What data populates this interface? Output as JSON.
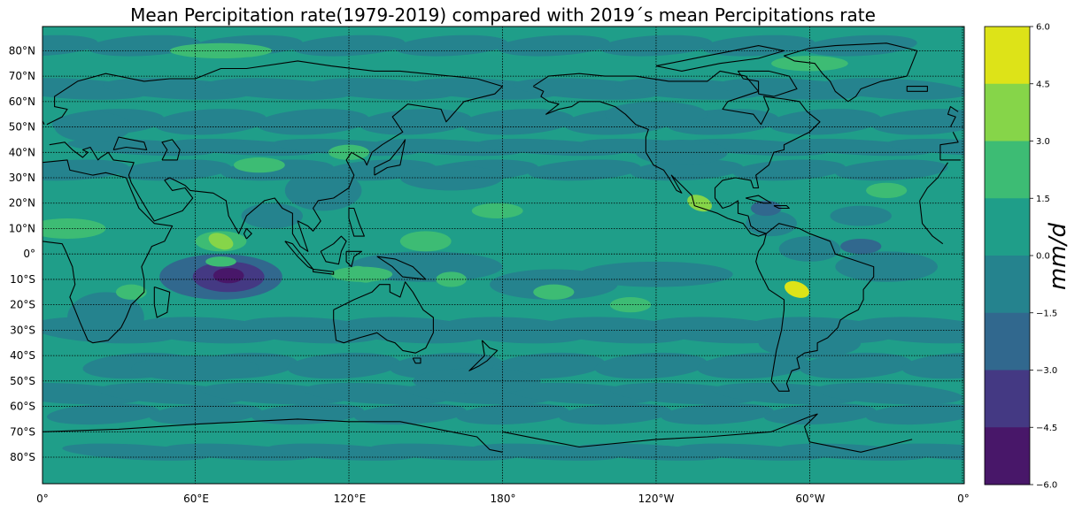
{
  "title": "Mean Percipitation rate(1979-2019) compared with 2019´s mean Percipitations rate",
  "map": {
    "projection": "PlateCarree",
    "central_longitude": 180,
    "lat_ticks": [
      "80°N",
      "70°N",
      "60°N",
      "50°N",
      "40°N",
      "30°N",
      "20°N",
      "10°N",
      "0°",
      "10°S",
      "20°S",
      "30°S",
      "40°S",
      "50°S",
      "60°S",
      "70°S",
      "80°S"
    ],
    "lon_ticks": [
      "0°",
      "60°E",
      "120°E",
      "180°",
      "120°W",
      "60°W",
      "0°"
    ],
    "gridlines": true
  },
  "colorbar": {
    "label": "mm/d",
    "ticks": [
      "6.0",
      "4.5",
      "3.0",
      "1.5",
      "0.0",
      "−1.5",
      "−3.0",
      "−4.5",
      "−6.0"
    ],
    "colors": [
      "#dde318",
      "#86d549",
      "#3dbc74",
      "#1f9e89",
      "#25838e",
      "#31688e",
      "#443983",
      "#481769"
    ]
  },
  "chart_data": {
    "type": "heatmap",
    "title": "Mean Percipitation rate(1979-2019) compared with 2019´s mean Percipitations rate",
    "variable": "precipitation rate anomaly",
    "unit": "mm/d",
    "levels": [
      -6.0,
      -4.5,
      -3.0,
      -1.5,
      0.0,
      1.5,
      3.0,
      4.5,
      6.0
    ],
    "lat_range": [
      -90,
      90
    ],
    "lon_range": [
      0,
      360
    ],
    "background_level_range": [
      0.0,
      1.5
    ],
    "features": [
      {
        "region": "Indian Ocean (approx 10°S, 73°E)",
        "value": -5.5
      },
      {
        "region": "Indian Ocean (approx 8°S, 80°E)",
        "value": -4.0
      },
      {
        "region": "Western Indian Ocean / Arabian Sea (approx 5°N, 70°E)",
        "value": 3.0
      },
      {
        "region": "Bolivia (approx 14°S, 65°W)",
        "value": 4.8
      },
      {
        "region": "Mexico (approx 20°N, 103°W)",
        "value": 4.0
      },
      {
        "region": "Western Africa (approx 10°N, 5°E)",
        "value": 2.5
      },
      {
        "region": "Southern Indonesia (approx 8°S, 125°E)",
        "value": 2.5
      }
    ]
  }
}
